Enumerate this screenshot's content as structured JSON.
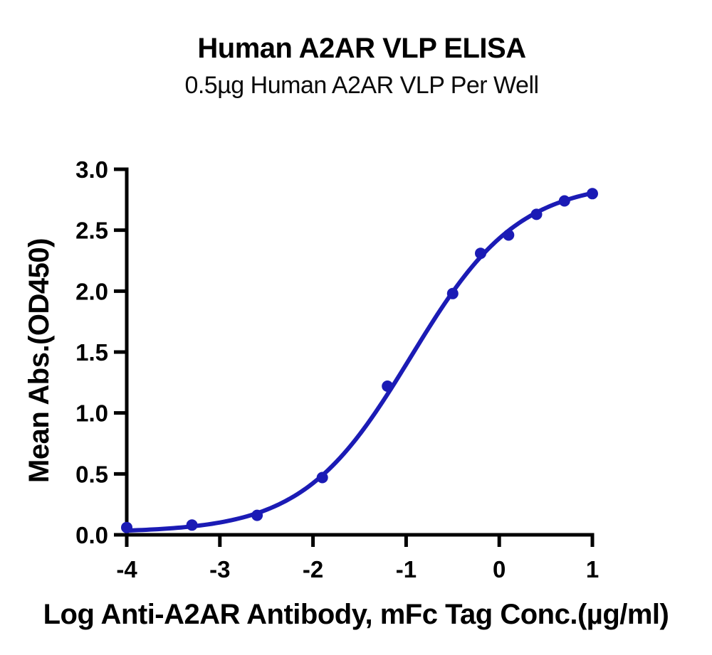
{
  "header": {
    "title": "Human A2AR VLP ELISA",
    "subtitle": "0.5µg Human A2AR VLP Per Well"
  },
  "chart_data": {
    "type": "scatter",
    "title": "Human A2AR VLP ELISA",
    "subtitle": "0.5µg Human A2AR VLP Per Well",
    "xlabel": "Log Anti-A2AR Antibody, mFc Tag Conc.(µg/ml)",
    "ylabel": "Mean Abs.(OD450)",
    "xlim": [
      -4,
      1
    ],
    "ylim": [
      0,
      3
    ],
    "x_ticks": [
      -4,
      -3,
      -2,
      -1,
      0,
      1
    ],
    "x_tick_labels": [
      "-4",
      "-3",
      "-2",
      "-1",
      "0",
      "1"
    ],
    "y_ticks": [
      0,
      0.5,
      1,
      1.5,
      2,
      2.5,
      3
    ],
    "y_tick_labels": [
      "0.0",
      "0.5",
      "1.0",
      "1.5",
      "2.0",
      "2.5",
      "3.0"
    ],
    "grid": false,
    "legend": "none",
    "axis_color": "#000000",
    "series": [
      {
        "name": "Human A2AR VLP",
        "color": "#1B1BB5",
        "marker": "circle",
        "x": [
          -4.0,
          -3.3,
          -2.6,
          -1.9,
          -1.2,
          -0.5,
          -0.2,
          0.1,
          0.4,
          0.7,
          1.0
        ],
        "y": [
          0.06,
          0.08,
          0.16,
          0.47,
          1.22,
          1.98,
          2.31,
          2.46,
          2.63,
          2.74,
          2.8
        ]
      }
    ],
    "curve_fit": {
      "model": "4PL",
      "bottom": 0.02,
      "top": 2.9,
      "log_ec50": -0.95,
      "hill_slope": 0.75,
      "x_start": -4.0,
      "x_end": 1.0
    }
  }
}
